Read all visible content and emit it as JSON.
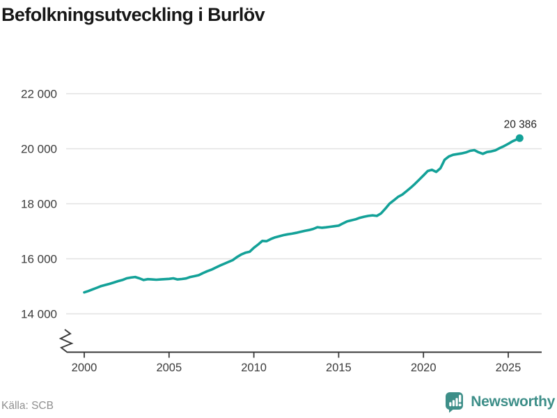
{
  "header": {
    "title": "Befolkningsutveckling i Burlöv"
  },
  "footer": {
    "source": "Källa: SCB",
    "brand": "Newsworthy"
  },
  "chart_data": {
    "type": "line",
    "title": "Befolkningsutveckling i Burlöv",
    "xlabel": "",
    "ylabel": "",
    "ylim": [
      14000,
      22000
    ],
    "axis_break": true,
    "grid": true,
    "legend": "none",
    "colors": {
      "line": "#13a198",
      "grid": "#e2e2e2",
      "axis": "#3a3a3a",
      "tick_text": "#3b3b3b",
      "end_dot": "#13a198"
    },
    "y_ticks": [
      {
        "value": 22000,
        "label": "22 000"
      },
      {
        "value": 20000,
        "label": "20 000"
      },
      {
        "value": 18000,
        "label": "18 000"
      },
      {
        "value": 16000,
        "label": "16 000"
      },
      {
        "value": 14000,
        "label": "14 000"
      }
    ],
    "x_ticks": [
      {
        "value": 2000,
        "label": "2000"
      },
      {
        "value": 2005,
        "label": "2005"
      },
      {
        "value": 2010,
        "label": "2010"
      },
      {
        "value": 2015,
        "label": "2015"
      },
      {
        "value": 2020,
        "label": "2020"
      },
      {
        "value": 2025,
        "label": "2025"
      }
    ],
    "end_label": "20 386",
    "end_value": 20386,
    "x": [
      2000,
      2000.25,
      2000.5,
      2000.75,
      2001,
      2001.25,
      2001.5,
      2001.75,
      2002,
      2002.25,
      2002.5,
      2002.75,
      2003,
      2003.25,
      2003.5,
      2003.75,
      2004,
      2004.25,
      2004.5,
      2004.75,
      2005,
      2005.25,
      2005.5,
      2005.75,
      2006,
      2006.25,
      2006.5,
      2006.75,
      2007,
      2007.25,
      2007.5,
      2007.75,
      2008,
      2008.25,
      2008.5,
      2008.75,
      2009,
      2009.25,
      2009.5,
      2009.75,
      2010,
      2010.25,
      2010.5,
      2010.75,
      2011,
      2011.25,
      2011.5,
      2011.75,
      2012,
      2012.25,
      2012.5,
      2012.75,
      2013,
      2013.25,
      2013.5,
      2013.75,
      2014,
      2014.25,
      2014.5,
      2014.75,
      2015,
      2015.25,
      2015.5,
      2015.75,
      2016,
      2016.25,
      2016.5,
      2016.75,
      2017,
      2017.25,
      2017.5,
      2017.75,
      2018,
      2018.25,
      2018.5,
      2018.75,
      2019,
      2019.25,
      2019.5,
      2019.75,
      2020,
      2020.25,
      2020.5,
      2020.75,
      2021,
      2021.25,
      2021.5,
      2021.75,
      2022,
      2022.25,
      2022.5,
      2022.75,
      2023,
      2023.25,
      2023.5,
      2023.75,
      2024,
      2024.25,
      2024.5,
      2024.75,
      2025,
      2025.25,
      2025.5,
      2025.67
    ],
    "series": [
      {
        "name": "Befolkning i Burlöv",
        "values": [
          14780,
          14830,
          14890,
          14950,
          15010,
          15050,
          15090,
          15140,
          15190,
          15230,
          15290,
          15320,
          15340,
          15290,
          15230,
          15260,
          15250,
          15240,
          15250,
          15260,
          15270,
          15290,
          15250,
          15265,
          15285,
          15340,
          15370,
          15405,
          15480,
          15550,
          15605,
          15680,
          15755,
          15820,
          15885,
          15950,
          16060,
          16155,
          16220,
          16255,
          16400,
          16520,
          16650,
          16640,
          16720,
          16780,
          16820,
          16860,
          16890,
          16915,
          16945,
          16980,
          17015,
          17045,
          17085,
          17150,
          17130,
          17145,
          17165,
          17185,
          17205,
          17285,
          17360,
          17400,
          17435,
          17490,
          17530,
          17560,
          17580,
          17560,
          17650,
          17820,
          18005,
          18125,
          18250,
          18335,
          18455,
          18585,
          18725,
          18875,
          19030,
          19190,
          19235,
          19160,
          19290,
          19600,
          19720,
          19780,
          19805,
          19830,
          19865,
          19925,
          19950,
          19870,
          19815,
          19880,
          19905,
          19945,
          20025,
          20095,
          20180,
          20270,
          20340,
          20386
        ]
      }
    ]
  }
}
